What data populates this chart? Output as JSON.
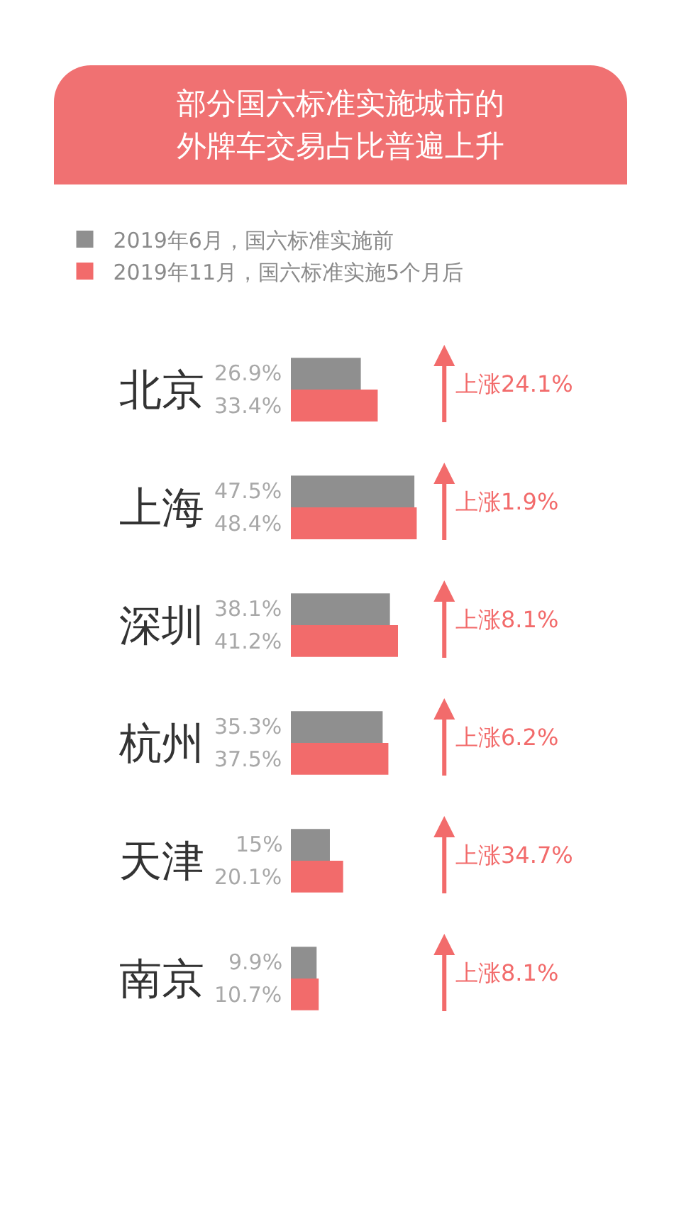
{
  "chart_data": {
    "type": "bar",
    "orientation": "horizontal",
    "title": "部分国六标准实施城市的外牌车交易占比普遍上升",
    "categories": [
      "北京",
      "上海",
      "深圳",
      "杭州",
      "天津",
      "南京"
    ],
    "series": [
      {
        "name": "2019年6月，国六标准实施前",
        "color": "#8f8f8f",
        "values": [
          26.9,
          47.5,
          38.1,
          35.3,
          15,
          9.9
        ],
        "value_labels": [
          "26.9%",
          "47.5%",
          "38.1%",
          "35.3%",
          "15%",
          "9.9%"
        ]
      },
      {
        "name": "2019年11月，国六标准实施5个月后",
        "color": "#f26b6b",
        "values": [
          33.4,
          48.4,
          41.2,
          37.5,
          20.1,
          10.7
        ],
        "value_labels": [
          "33.4%",
          "48.4%",
          "41.2%",
          "37.5%",
          "20.1%",
          "10.7%"
        ]
      }
    ],
    "annotations": [
      "上涨24.1%",
      "上涨1.9%",
      "上涨8.1%",
      "上涨6.2%",
      "上涨34.7%",
      "上涨8.1%"
    ],
    "legend": "top left",
    "grid": false
  }
}
